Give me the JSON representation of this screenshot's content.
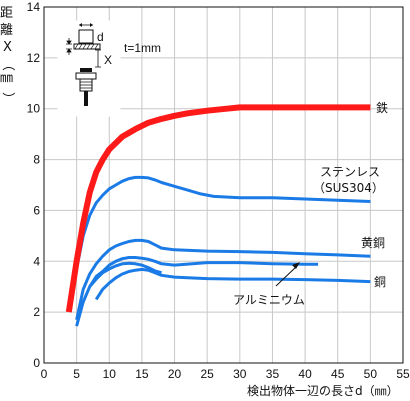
{
  "chart_data": {
    "type": "line",
    "xlim": [
      0,
      55
    ],
    "ylim": [
      0,
      14
    ],
    "xticks": [
      0,
      5,
      10,
      15,
      20,
      25,
      30,
      35,
      40,
      45,
      50,
      55
    ],
    "yticks": [
      0,
      2,
      4,
      6,
      8,
      10,
      12,
      14
    ],
    "xlabel": "検出物体一辺の長さd（㎜）",
    "ylabel_chars": [
      "距",
      "離",
      "X",
      "（",
      "㎜",
      "）"
    ],
    "grid": true,
    "colors": {
      "iron": "#ff1a1a",
      "other": "#1a7be6"
    },
    "series": [
      {
        "name": "鉄",
        "x": [
          3.8,
          5,
          6,
          7,
          8,
          9,
          10,
          12,
          14,
          16,
          18,
          20,
          22,
          25,
          28,
          30,
          35,
          40,
          45,
          50
        ],
        "y": [
          2.0,
          4.0,
          5.5,
          6.7,
          7.5,
          8.0,
          8.4,
          8.9,
          9.2,
          9.45,
          9.6,
          9.72,
          9.82,
          9.92,
          10.0,
          10.05,
          10.05,
          10.05,
          10.05,
          10.05
        ]
      },
      {
        "name": "ステンレス",
        "name_line2": "（SUS304）",
        "x": [
          4,
          5,
          6,
          7,
          8,
          9,
          10,
          11,
          12,
          13,
          14,
          15,
          16,
          17,
          18,
          20,
          22,
          24,
          26,
          30,
          35,
          40,
          45,
          50
        ],
        "y": [
          2.0,
          3.7,
          5.0,
          5.8,
          6.3,
          6.6,
          6.85,
          7.0,
          7.15,
          7.25,
          7.3,
          7.3,
          7.28,
          7.2,
          7.1,
          6.95,
          6.8,
          6.65,
          6.55,
          6.5,
          6.5,
          6.45,
          6.4,
          6.35
        ]
      },
      {
        "name": "黄銅",
        "x": [
          5,
          6,
          7,
          8,
          9,
          10,
          11,
          12,
          13,
          14,
          15,
          16,
          17,
          18,
          20,
          25,
          30,
          35,
          40,
          45,
          50
        ],
        "y": [
          1.7,
          2.9,
          3.5,
          3.9,
          4.2,
          4.45,
          4.6,
          4.7,
          4.78,
          4.82,
          4.82,
          4.78,
          4.65,
          4.52,
          4.45,
          4.4,
          4.38,
          4.35,
          4.3,
          4.25,
          4.2
        ]
      },
      {
        "name": "アルミニウム",
        "x": [
          5,
          6,
          7,
          8,
          9,
          10,
          11,
          12,
          13,
          14,
          15,
          16,
          17,
          18,
          20,
          25,
          30,
          35,
          40,
          42
        ],
        "y": [
          1.45,
          2.4,
          3.0,
          3.4,
          3.6,
          3.85,
          4.0,
          4.1,
          4.15,
          4.15,
          4.12,
          4.08,
          4.0,
          3.9,
          3.85,
          3.95,
          3.95,
          3.9,
          3.88,
          3.88
        ]
      },
      {
        "name": "銅",
        "x": [
          8,
          9,
          10,
          11,
          12,
          13,
          14,
          15,
          16,
          17,
          18,
          20,
          22,
          25,
          30,
          35,
          40,
          45,
          50
        ],
        "y": [
          2.5,
          2.9,
          3.15,
          3.35,
          3.5,
          3.6,
          3.65,
          3.68,
          3.65,
          3.55,
          3.45,
          3.38,
          3.35,
          3.32,
          3.3,
          3.3,
          3.28,
          3.25,
          3.2
        ]
      },
      {
        "name": "",
        "x": [
          7,
          8,
          9,
          10,
          11,
          12,
          13,
          14,
          15,
          16,
          17,
          18
        ],
        "y": [
          3.0,
          3.3,
          3.55,
          3.7,
          3.82,
          3.9,
          3.92,
          3.9,
          3.85,
          3.75,
          3.62,
          3.55
        ]
      }
    ],
    "inset": {
      "d": "d",
      "x": "X",
      "t": "t=1mm"
    }
  }
}
